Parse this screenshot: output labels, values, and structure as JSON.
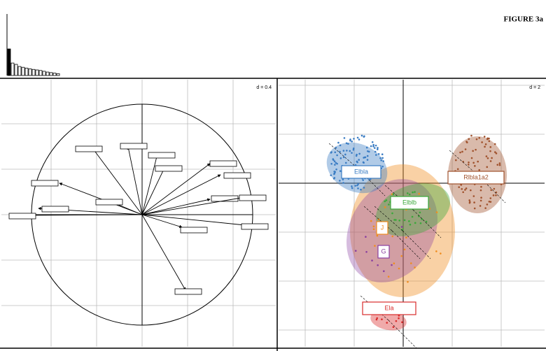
{
  "figure_label": "FIGURE 3a",
  "screeplot": {
    "values": [
      1.0,
      0.47,
      0.42,
      0.34,
      0.31,
      0.28,
      0.25,
      0.23,
      0.21,
      0.19,
      0.16,
      0.13,
      0.11,
      0.09,
      0.07
    ]
  },
  "left_panel": {
    "scale_label": "d = 0.4"
  },
  "right_panel": {
    "scale_label": "d = 2",
    "groups": [
      {
        "label": "Elbla",
        "color": "#3b7dc4"
      },
      {
        "label": "Rlbla1a2",
        "color": "#a0522d"
      },
      {
        "label": "Elblb",
        "color": "#3aa83a"
      },
      {
        "label": "J",
        "color": "#f08c1e"
      },
      {
        "label": "G",
        "color": "#8a3fa0"
      },
      {
        "label": "Ela",
        "color": "#d92b2b"
      }
    ]
  }
}
